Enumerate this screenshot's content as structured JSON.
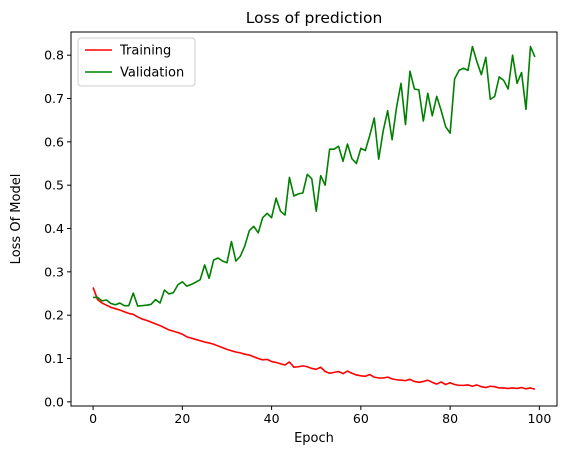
{
  "chart_data": {
    "type": "line",
    "title": "Loss of prediction",
    "xlabel": "Epoch",
    "ylabel": "Loss Of Model",
    "xlim": [
      -4.95,
      103.95
    ],
    "ylim": [
      -0.0096,
      0.8535
    ],
    "xticks": [
      0,
      20,
      40,
      60,
      80,
      100
    ],
    "xtick_labels": [
      "0",
      "20",
      "40",
      "60",
      "80",
      "100"
    ],
    "yticks": [
      0.0,
      0.1,
      0.2,
      0.3,
      0.4,
      0.5,
      0.6,
      0.7,
      0.8
    ],
    "ytick_labels": [
      "0.0",
      "0.1",
      "0.2",
      "0.3",
      "0.4",
      "0.5",
      "0.6",
      "0.7",
      "0.8"
    ],
    "grid": false,
    "legend": "upper-left",
    "series": [
      {
        "name": "Training",
        "color": "#ff0000",
        "values": [
          0.264,
          0.236,
          0.228,
          0.223,
          0.218,
          0.215,
          0.212,
          0.208,
          0.204,
          0.202,
          0.196,
          0.191,
          0.188,
          0.184,
          0.18,
          0.176,
          0.171,
          0.166,
          0.163,
          0.16,
          0.156,
          0.15,
          0.147,
          0.144,
          0.141,
          0.138,
          0.136,
          0.133,
          0.129,
          0.125,
          0.121,
          0.118,
          0.115,
          0.113,
          0.11,
          0.108,
          0.104,
          0.1,
          0.097,
          0.098,
          0.093,
          0.091,
          0.088,
          0.085,
          0.092,
          0.08,
          0.081,
          0.083,
          0.081,
          0.077,
          0.075,
          0.08,
          0.07,
          0.066,
          0.068,
          0.07,
          0.065,
          0.071,
          0.066,
          0.062,
          0.06,
          0.059,
          0.063,
          0.057,
          0.055,
          0.055,
          0.057,
          0.053,
          0.051,
          0.05,
          0.049,
          0.052,
          0.047,
          0.045,
          0.047,
          0.05,
          0.045,
          0.041,
          0.046,
          0.04,
          0.044,
          0.04,
          0.038,
          0.038,
          0.039,
          0.036,
          0.039,
          0.035,
          0.033,
          0.036,
          0.035,
          0.032,
          0.032,
          0.031,
          0.032,
          0.031,
          0.033,
          0.03,
          0.032,
          0.029
        ]
      },
      {
        "name": "Validation",
        "color": "#008000",
        "values": [
          0.241,
          0.241,
          0.233,
          0.235,
          0.227,
          0.224,
          0.228,
          0.222,
          0.222,
          0.251,
          0.221,
          0.222,
          0.223,
          0.225,
          0.236,
          0.228,
          0.258,
          0.249,
          0.252,
          0.27,
          0.277,
          0.267,
          0.271,
          0.276,
          0.282,
          0.316,
          0.285,
          0.327,
          0.332,
          0.325,
          0.321,
          0.37,
          0.325,
          0.336,
          0.36,
          0.395,
          0.405,
          0.39,
          0.425,
          0.435,
          0.425,
          0.47,
          0.44,
          0.431,
          0.518,
          0.475,
          0.48,
          0.482,
          0.525,
          0.515,
          0.44,
          0.522,
          0.5,
          0.583,
          0.583,
          0.59,
          0.555,
          0.595,
          0.561,
          0.55,
          0.585,
          0.58,
          0.615,
          0.655,
          0.56,
          0.625,
          0.672,
          0.605,
          0.68,
          0.735,
          0.64,
          0.763,
          0.722,
          0.72,
          0.648,
          0.712,
          0.66,
          0.705,
          0.672,
          0.635,
          0.62,
          0.745,
          0.765,
          0.77,
          0.765,
          0.82,
          0.785,
          0.755,
          0.795,
          0.698,
          0.705,
          0.75,
          0.742,
          0.722,
          0.8,
          0.735,
          0.76,
          0.675,
          0.82,
          0.796
        ]
      }
    ]
  }
}
